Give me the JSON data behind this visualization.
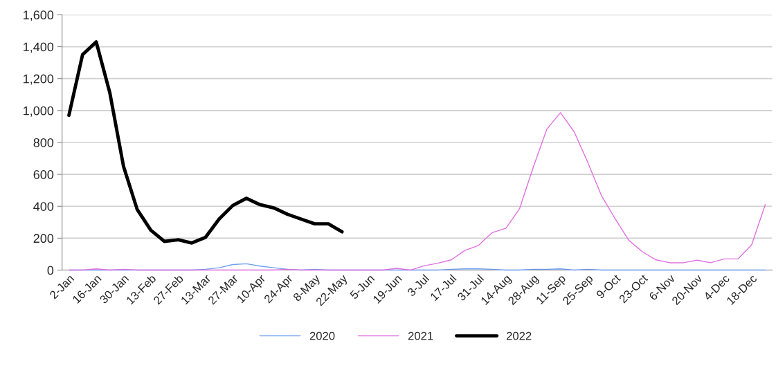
{
  "chart_data": {
    "type": "line",
    "categories": [
      "2-Jan",
      null,
      "16-Jan",
      null,
      "30-Jan",
      null,
      "13-Feb",
      null,
      "27-Feb",
      null,
      "13-Mar",
      null,
      "27-Mar",
      null,
      "10-Apr",
      null,
      "24-Apr",
      null,
      "8-May",
      null,
      "22-May",
      null,
      "5-Jun",
      null,
      "19-Jun",
      null,
      "3-Jul",
      null,
      "17-Jul",
      null,
      "31-Jul",
      null,
      "14-Aug",
      null,
      "28-Aug",
      null,
      "11-Sep",
      null,
      "25-Sep",
      null,
      "9-Oct",
      null,
      "23-Oct",
      null,
      "6-Nov",
      null,
      "20-Nov",
      null,
      "4-Dec",
      null,
      "18-Dec",
      null
    ],
    "series": [
      {
        "name": "2020",
        "color": "#6f9ff0",
        "values": [
          0,
          0,
          0,
          0,
          0,
          0,
          0,
          0,
          0,
          0,
          5,
          15,
          35,
          40,
          25,
          15,
          5,
          0,
          5,
          0,
          0,
          0,
          0,
          0,
          0,
          0,
          0,
          0,
          5,
          8,
          8,
          5,
          0,
          0,
          5,
          5,
          8,
          0,
          5,
          0,
          0,
          0,
          0,
          0,
          0,
          0,
          0,
          0,
          0,
          0,
          0,
          0
        ]
      },
      {
        "name": "2021",
        "color": "#e070e0",
        "values": [
          0,
          0,
          8,
          0,
          5,
          0,
          0,
          0,
          0,
          0,
          0,
          0,
          0,
          0,
          0,
          0,
          5,
          0,
          0,
          0,
          0,
          0,
          0,
          0,
          11,
          0,
          27,
          43,
          64,
          123,
          155,
          235,
          262,
          384,
          643,
          883,
          987,
          867,
          675,
          467,
          323,
          187,
          115,
          64,
          46,
          46,
          62,
          46,
          70,
          70,
          158,
          411
        ]
      },
      {
        "name": "2022",
        "color": "#000000",
        "values": [
          970,
          1350,
          1430,
          1110,
          650,
          380,
          250,
          180,
          190,
          170,
          205,
          320,
          405,
          450,
          410,
          390,
          350,
          320,
          290,
          290,
          240,
          null,
          null,
          null,
          null,
          null,
          null,
          null,
          null,
          null,
          null,
          null,
          null,
          null,
          null,
          null,
          null,
          null,
          null,
          null,
          null,
          null,
          null,
          null,
          null,
          null,
          null,
          null,
          null,
          null,
          null,
          null
        ]
      }
    ],
    "ylim": [
      0,
      1600
    ],
    "yticks": [
      {
        "value": 0,
        "label": "0"
      },
      {
        "value": 200,
        "label": "200"
      },
      {
        "value": 400,
        "label": "400"
      },
      {
        "value": 600,
        "label": "600"
      },
      {
        "value": 800,
        "label": "800"
      },
      {
        "value": 1000,
        "label": "1,000"
      },
      {
        "value": 1200,
        "label": "1,200"
      },
      {
        "value": 1400,
        "label": "1,400"
      },
      {
        "value": 1600,
        "label": "1,600"
      }
    ],
    "grid": "y",
    "legend": "bottom",
    "marker": "none",
    "line_style": "solid"
  }
}
